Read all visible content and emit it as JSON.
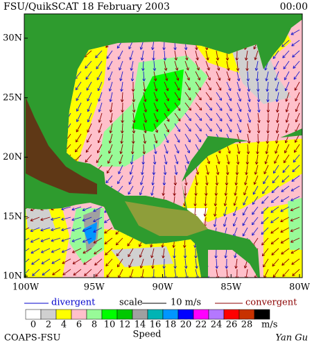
{
  "header": {
    "title": "FSU/QuikSCAT 18 February 2003",
    "time": "00:00"
  },
  "map": {
    "lat_labels": [
      "30N",
      "25N",
      "20N",
      "15N",
      "10N"
    ],
    "lon_labels": [
      "100W",
      "95W",
      "90W",
      "85W",
      "80W"
    ]
  },
  "legend": {
    "divergent": "divergent",
    "scale": "scale",
    "scale_value": "10 m/s",
    "convergent": "convergent"
  },
  "colorbar": {
    "levels": [
      0,
      2,
      4,
      6,
      8,
      10,
      12,
      14,
      16,
      18,
      20,
      22,
      24,
      26,
      28
    ],
    "unit": "m/s",
    "title": "Speed",
    "colors": [
      "#ffffff",
      "#d0d0d0",
      "#ffff00",
      "#ffc0cb",
      "#98fb98",
      "#00ff00",
      "#00c800",
      "#a0a0a0",
      "#00b4b4",
      "#0096ff",
      "#0000ff",
      "#ff00ff",
      "#b478ff",
      "#ff0000",
      "#c83200",
      "#000000"
    ]
  },
  "footer": {
    "left": "COAPS-FSU",
    "right": "Yan Gu"
  }
}
